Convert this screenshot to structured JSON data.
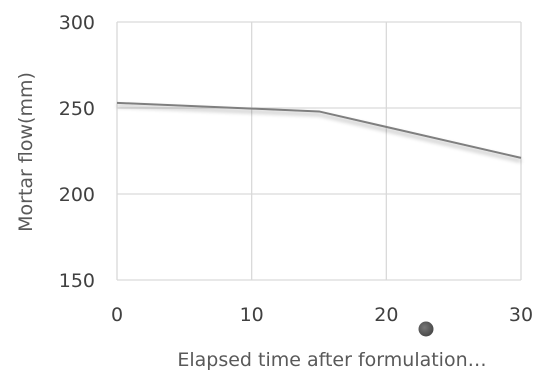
{
  "chart_data": {
    "type": "line",
    "title": "",
    "xlabel": "Elapsed time after formulation…",
    "ylabel": "Mortar flow(mm)",
    "xlim": [
      0,
      30
    ],
    "ylim": [
      150,
      300
    ],
    "x_ticks": [
      0,
      10,
      20,
      30
    ],
    "y_ticks": [
      150,
      200,
      250,
      300
    ],
    "grid": true,
    "series": [
      {
        "x": [
          0,
          15,
          30
        ],
        "values": [
          253,
          248,
          221
        ],
        "color": "#7f7f7f"
      }
    ]
  }
}
